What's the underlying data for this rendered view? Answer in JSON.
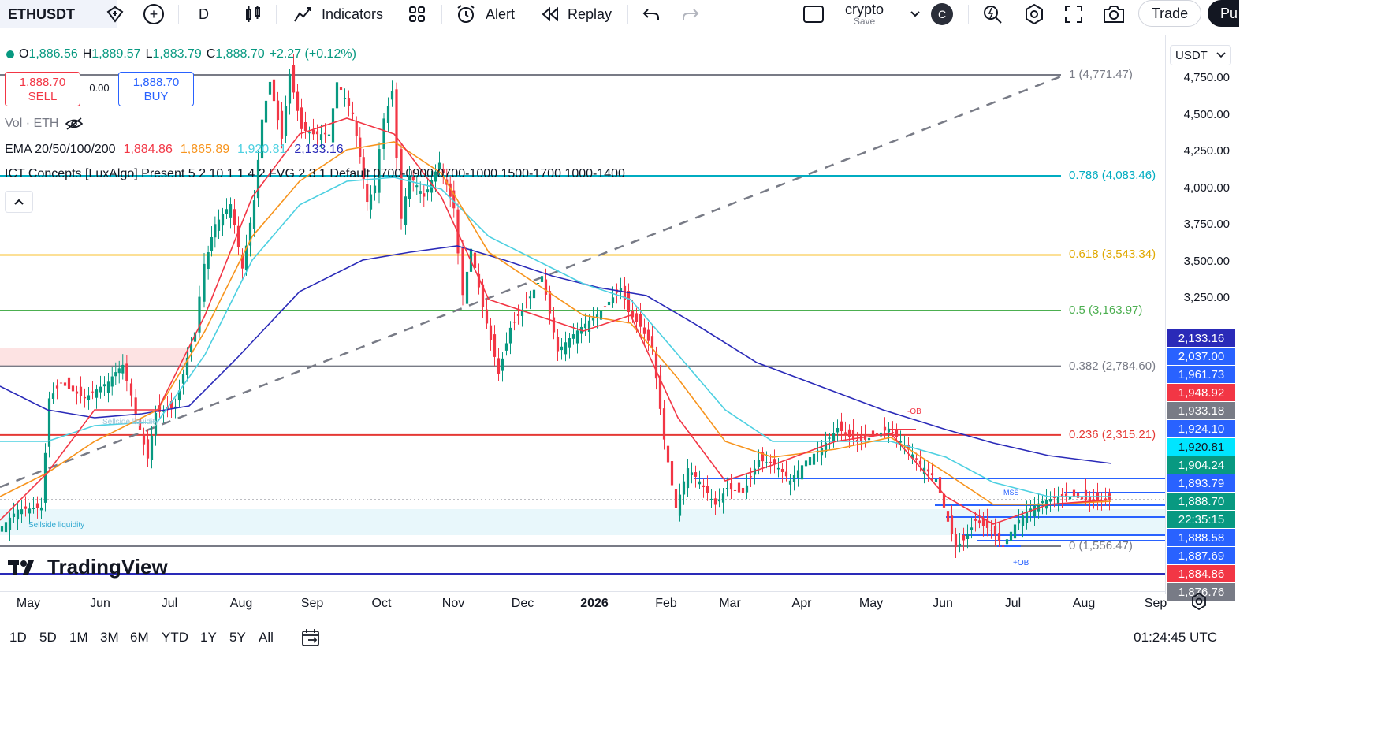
{
  "toolbar": {
    "symbol": "ETHUSDT",
    "interval": "D",
    "indicators_label": "Indicators",
    "alert_label": "Alert",
    "replay_label": "Replay",
    "layout_name": "crypto",
    "layout_save": "Save",
    "avatar_letter": "C",
    "trade_label": "Trade",
    "publish_label": "Pu"
  },
  "legend": {
    "ohlc": {
      "o_label": "O",
      "o": "1,886.56",
      "h_label": "H",
      "h": "1,889.57",
      "l_label": "L",
      "l": "1,883.79",
      "c_label": "C",
      "c": "1,888.70",
      "change": "+2.27 (+0.12%)"
    },
    "sell_price": "1,888.70",
    "sell_label": "SELL",
    "spread": "0.00",
    "buy_price": "1,888.70",
    "buy_label": "BUY",
    "volume": "Vol · ETH",
    "ema_label": "EMA 20/50/100/200",
    "ema_values": [
      "1,884.86",
      "1,865.89",
      "1,920.81",
      "2,133.16"
    ],
    "ema_colors": [
      "#f23645",
      "#f7941d",
      "#4dd0e1",
      "#2a2ab8"
    ],
    "ict_label": "ICT Concepts [LuxAlgo]",
    "ict_params": "Present 5 2 10 1 1 4 2 FVG 2 3 1 Default 0700-0900 0700-1000 1500-1700 1000-1400"
  },
  "chart_data": {
    "type": "candlestick",
    "symbol": "ETHUSDT",
    "interval": "D",
    "y_ticks": [
      3250,
      3500,
      3750,
      4000,
      4250,
      4500,
      4750
    ],
    "y_tick_labels": [
      "3,250.00",
      "3,500.00",
      "3,750.00",
      "4,000.00",
      "4,250.00",
      "4,500.00",
      "4,750.00"
    ],
    "x_labels": [
      "May",
      "Jun",
      "Jul",
      "Aug",
      "Sep",
      "Oct",
      "Nov",
      "Dec",
      "2026",
      "Feb",
      "Mar",
      "Apr",
      "May",
      "Jun",
      "Jul",
      "Aug",
      "Sep"
    ],
    "fib_levels": [
      {
        "ratio": "1",
        "price": "4,771.47",
        "value": 4771.47,
        "color": "#787b86"
      },
      {
        "ratio": "0.786",
        "price": "4,083.46",
        "value": 4083.46,
        "color": "#00acc1"
      },
      {
        "ratio": "0.618",
        "price": "3,543.34",
        "value": 3543.34,
        "color": "#f9c02e"
      },
      {
        "ratio": "0.5",
        "price": "3,163.97",
        "value": 3163.97,
        "color": "#4caf50"
      },
      {
        "ratio": "0.382",
        "price": "2,784.60",
        "value": 2784.6,
        "color": "#787b86"
      },
      {
        "ratio": "0.236",
        "price": "2,315.21",
        "value": 2315.21,
        "color": "#e53935"
      },
      {
        "ratio": "0",
        "price": "1,556.47",
        "value": 1556.47,
        "color": "#787b86"
      }
    ],
    "price_tags": [
      {
        "value": "2,133.16",
        "color": "#2a2ab8"
      },
      {
        "value": "2,037.00",
        "color": "#2962ff"
      },
      {
        "value": "1,961.73",
        "color": "#2962ff"
      },
      {
        "value": "1,948.92",
        "color": "#f23645"
      },
      {
        "value": "1,933.18",
        "color": "#787b86"
      },
      {
        "value": "1,924.10",
        "color": "#2962ff"
      },
      {
        "value": "1,920.81",
        "color": "#00e5ff"
      },
      {
        "value": "1,904.24",
        "color": "#089981"
      },
      {
        "value": "1,893.79",
        "color": "#2962ff"
      },
      {
        "value": "1,888.70",
        "color": "#089981"
      },
      {
        "value": "22:35:15",
        "color": "#089981"
      },
      {
        "value": "1,888.58",
        "color": "#2962ff"
      },
      {
        "value": "1,887.69",
        "color": "#2962ff"
      },
      {
        "value": "1,884.86",
        "color": "#f23645"
      },
      {
        "value": "1,876.76",
        "color": "#787b86"
      }
    ],
    "annotations": [
      "Sellside liquidity",
      "Sellside liquidity",
      "-OB",
      "+OB",
      "MSS"
    ],
    "currency": "USDT"
  },
  "bottom": {
    "ranges": [
      "1D",
      "5D",
      "1M",
      "3M",
      "6M",
      "YTD",
      "1Y",
      "5Y",
      "All"
    ],
    "clock": "01:24:45 UTC"
  },
  "logo_text": "TradingView"
}
